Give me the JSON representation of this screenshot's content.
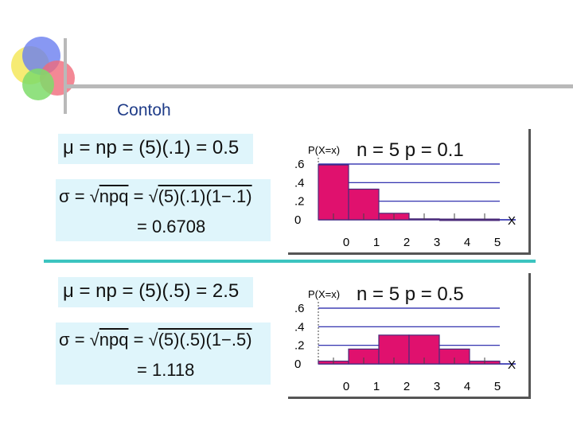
{
  "slide": {
    "title": "Contoh"
  },
  "top": {
    "mean_formula": "μ = np = (5)(.1) = 0.5",
    "sd_formula_prefix": "σ = ",
    "sd_formula_rad1": "npq",
    "sd_formula_mid": " = ",
    "sd_formula_rad2": "(5)(.1)(1−.1)",
    "sd_formula_result": "= 0.6708"
  },
  "bottom": {
    "mean_formula": "μ = np = (5)(.5) = 2.5",
    "sd_formula_prefix": "σ = ",
    "sd_formula_rad1": "npq",
    "sd_formula_mid": " = ",
    "sd_formula_rad2": "(5)(.5)(1−.5)",
    "sd_formula_result": "= 1.118"
  },
  "colors": {
    "bar_fill": "#e0116e",
    "bar_edge": "#4b2b7a",
    "grid": "#1a1aa6",
    "box": "#dff5fb",
    "divider": "#3cc4c0"
  },
  "chart_data": [
    {
      "type": "bar",
      "title": "n = 5  p = 0.1",
      "ylabel": "P(X=x)",
      "xlabel": "X",
      "categories": [
        "0",
        "1",
        "2",
        "3",
        "4",
        "5"
      ],
      "values": [
        0.59,
        0.33,
        0.07,
        0.01,
        0.0,
        0.0
      ],
      "ytick_labels": [
        ".6",
        ".4",
        ".2",
        "0"
      ],
      "yticks": [
        0.6,
        0.4,
        0.2,
        0
      ],
      "ylim": [
        0,
        0.6
      ],
      "grid": true
    },
    {
      "type": "bar",
      "title": "n = 5  p = 0.5",
      "ylabel": "P(X=x)",
      "xlabel": "X",
      "categories": [
        "0",
        "1",
        "2",
        "3",
        "4",
        "5"
      ],
      "values": [
        0.03,
        0.16,
        0.31,
        0.31,
        0.16,
        0.03
      ],
      "ytick_labels": [
        ".6",
        ".4",
        ".2",
        "0"
      ],
      "yticks": [
        0.6,
        0.4,
        0.2,
        0
      ],
      "ylim": [
        0,
        0.6
      ],
      "grid": true
    }
  ]
}
